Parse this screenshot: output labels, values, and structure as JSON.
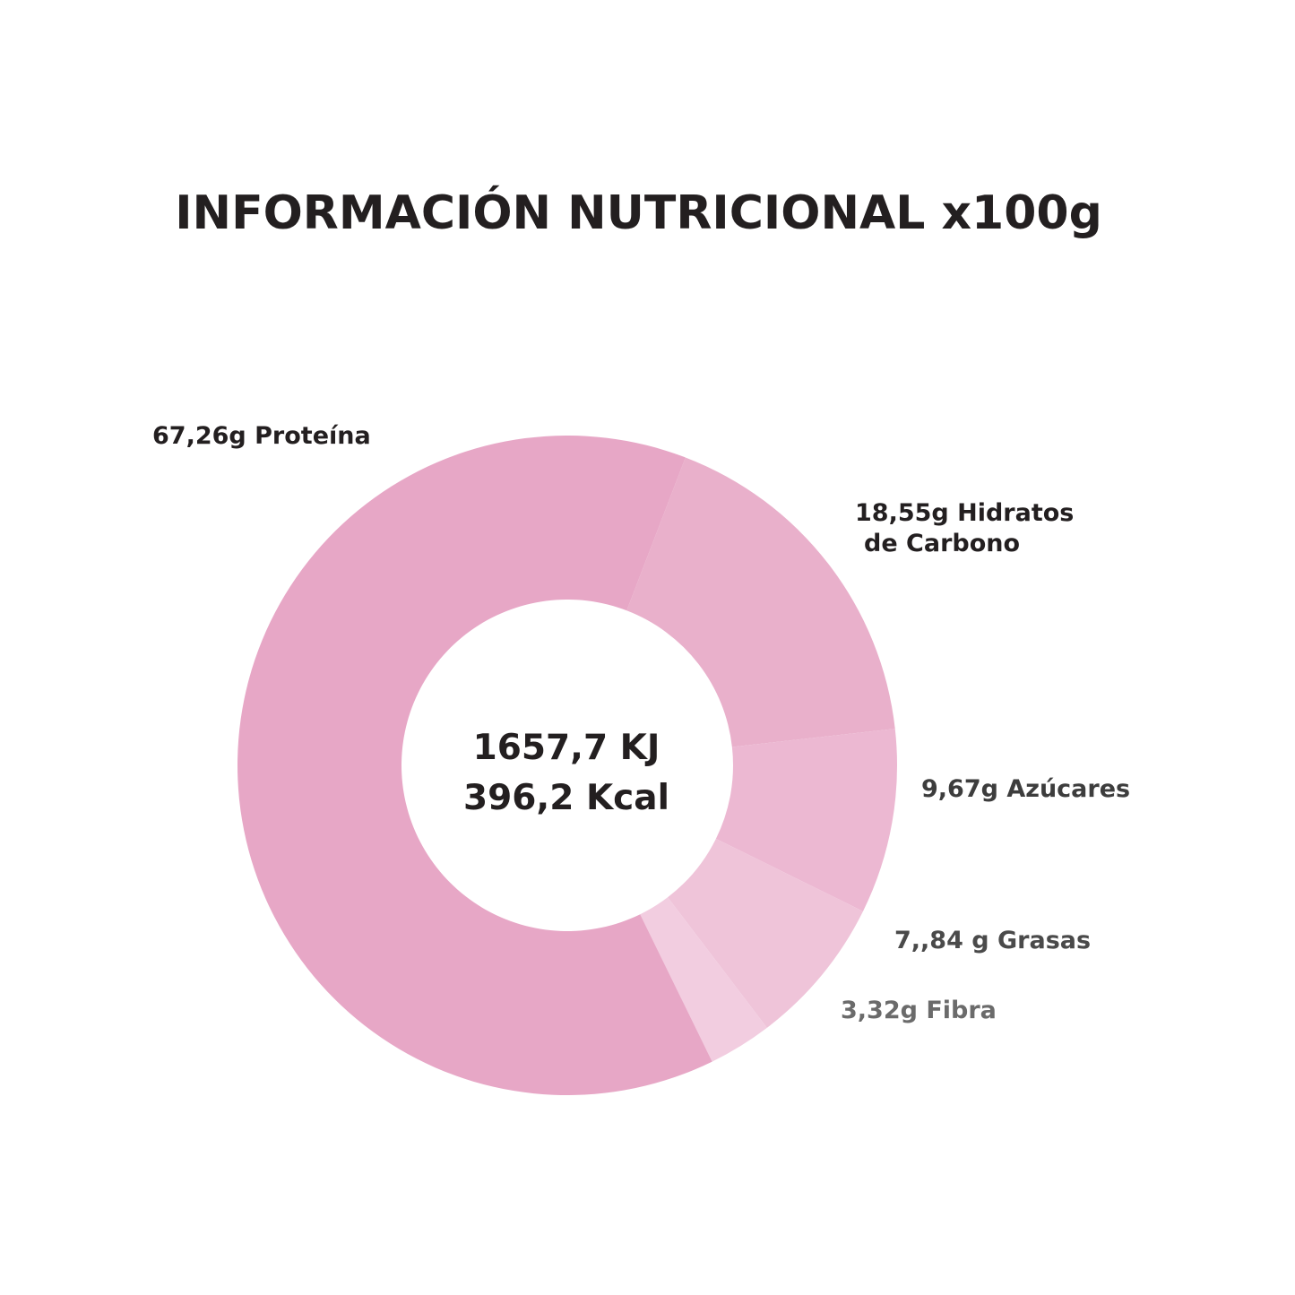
{
  "title": "INFORMACIÓN NUTRICIONAL x100g",
  "center": {
    "line1": "1657,7 KJ",
    "line2": "396,2 Kcal"
  },
  "chart_data": {
    "type": "pie",
    "title": "INFORMACIÓN NUTRICIONAL x100g",
    "donut": true,
    "slices": [
      {
        "key": "proteina",
        "label": "67,26g Proteína",
        "value": 67.26,
        "color": "#e7a7c6"
      },
      {
        "key": "hidratos",
        "label_line1": "18,55g Hidratos",
        "label_line2": "de Carbono",
        "value": 18.55,
        "color": "#e9b0cb"
      },
      {
        "key": "azucares",
        "label": "9,67g Azúcares",
        "value": 9.67,
        "color": "#ecb8d2"
      },
      {
        "key": "grasas",
        "label": "7,,84 g Grasas",
        "value": 7.84,
        "color": "#efc4d9"
      },
      {
        "key": "fibra",
        "label": "3,32g Fibra",
        "value": 3.32,
        "color": "#f2cde0"
      }
    ],
    "legend": "none"
  }
}
